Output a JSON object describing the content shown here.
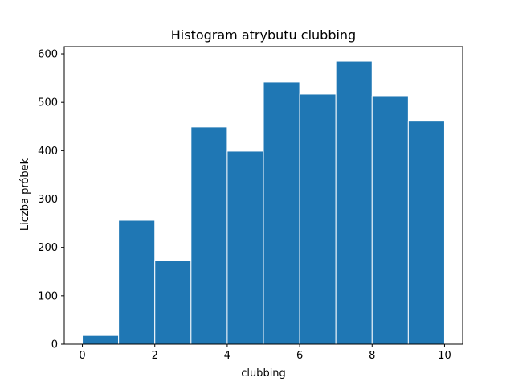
{
  "chart_data": {
    "type": "bar",
    "title": "Histogram atrybutu clubbing",
    "xlabel": "clubbing",
    "ylabel": "Liczba próbek",
    "bins": [
      {
        "start": 0,
        "end": 1,
        "count": 18
      },
      {
        "start": 1,
        "end": 2,
        "count": 256
      },
      {
        "start": 2,
        "end": 3,
        "count": 173
      },
      {
        "start": 3,
        "end": 4,
        "count": 449
      },
      {
        "start": 4,
        "end": 5,
        "count": 399
      },
      {
        "start": 5,
        "end": 6,
        "count": 542
      },
      {
        "start": 6,
        "end": 7,
        "count": 517
      },
      {
        "start": 7,
        "end": 8,
        "count": 585
      },
      {
        "start": 8,
        "end": 9,
        "count": 512
      },
      {
        "start": 9,
        "end": 10,
        "count": 461
      }
    ],
    "xlim": [
      -0.5,
      10.5
    ],
    "ylim": [
      0,
      615
    ],
    "xticks": [
      0,
      2,
      4,
      6,
      8,
      10
    ],
    "yticks": [
      0,
      100,
      200,
      300,
      400,
      500,
      600
    ],
    "grid": false,
    "bar_color": "#1f77b4",
    "edge_color": "#ffffff"
  }
}
